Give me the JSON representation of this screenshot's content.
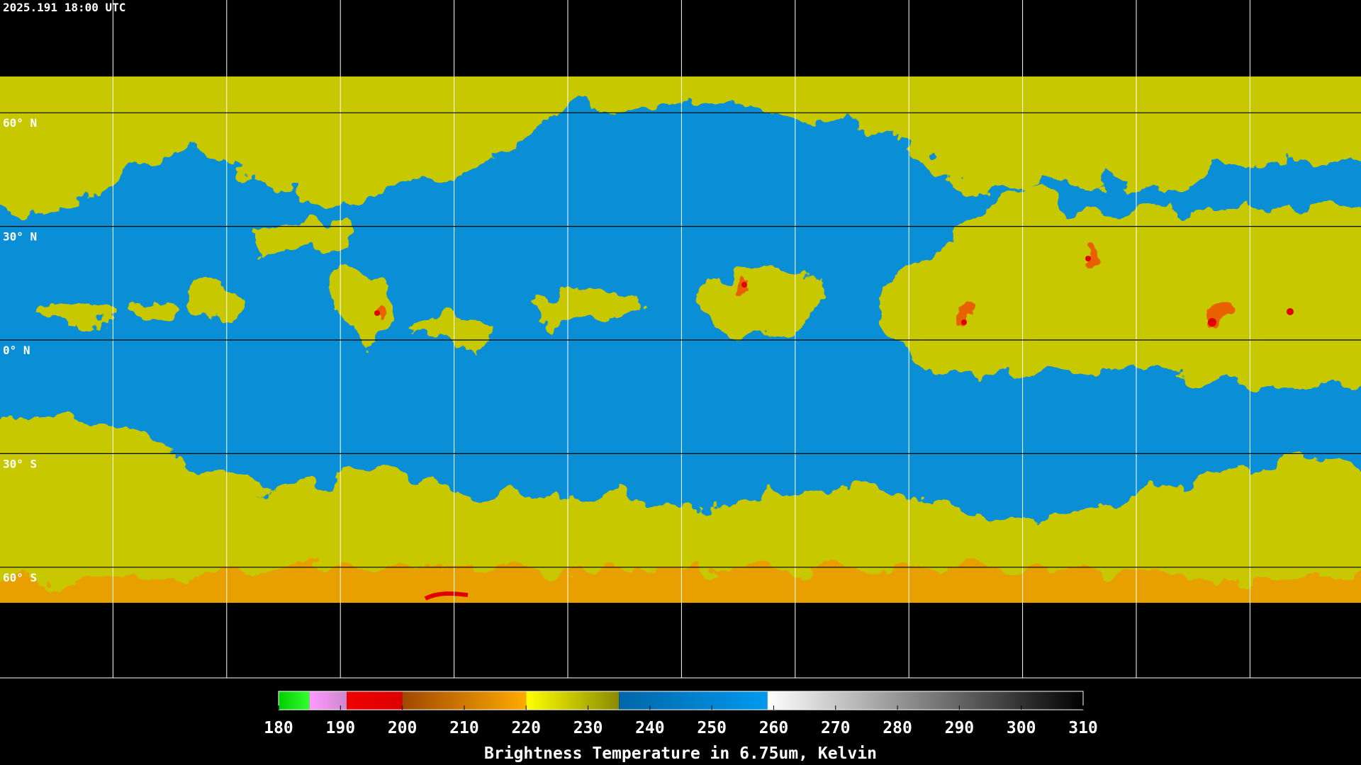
{
  "header": {
    "timestamp": "2025.191 18:00 UTC"
  },
  "map": {
    "latitudes": [
      {
        "value": 60,
        "label": "60° N"
      },
      {
        "value": 30,
        "label": "30° N"
      },
      {
        "value": 0,
        "label": "0° N"
      },
      {
        "value": -30,
        "label": "30° S"
      },
      {
        "value": -60,
        "label": "60° S"
      }
    ]
  },
  "colorbar": {
    "title": "Brightness Temperature in 6.75um, Kelvin",
    "lim": [
      180,
      310
    ],
    "ticks": [
      180,
      190,
      200,
      210,
      220,
      230,
      240,
      250,
      260,
      270,
      280,
      290,
      300,
      310
    ],
    "segments": [
      {
        "from": 180,
        "to": 185,
        "colors": [
          "#00cc00",
          "#33ff33"
        ]
      },
      {
        "from": 185,
        "to": 191,
        "colors": [
          "#ff99ff",
          "#cc88cc"
        ]
      },
      {
        "from": 191,
        "to": 200,
        "colors": [
          "#ee0000",
          "#dd0000"
        ]
      },
      {
        "from": 200,
        "to": 220,
        "colors": [
          "#a04800",
          "#ffaa00"
        ]
      },
      {
        "from": 220,
        "to": 235,
        "colors": [
          "#ffff00",
          "#8a8a00"
        ]
      },
      {
        "from": 235,
        "to": 259,
        "colors": [
          "#0066a8",
          "#0099ee"
        ]
      },
      {
        "from": 259,
        "to": 310,
        "colors": [
          "#ffffff",
          "#000000"
        ]
      }
    ]
  }
}
